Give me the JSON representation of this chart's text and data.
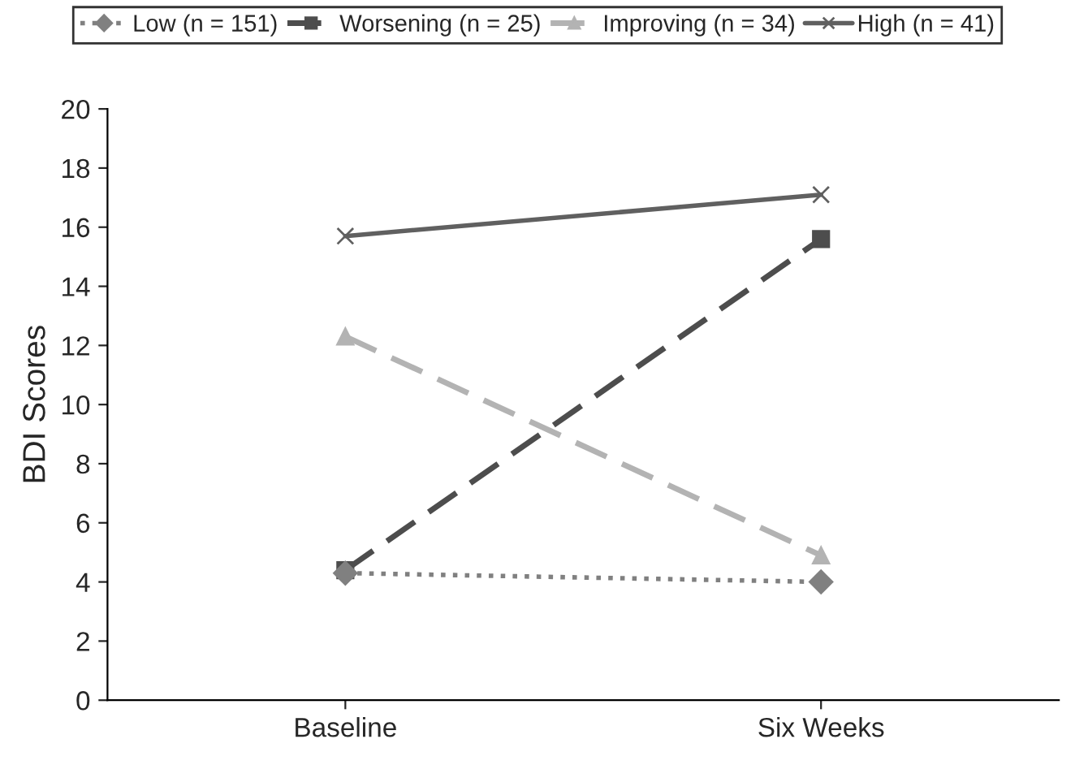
{
  "chart_data": {
    "type": "line",
    "ylabel": "BDI Scores",
    "categories": [
      "Baseline",
      "Six Weeks"
    ],
    "series": [
      {
        "name": "Low (n = 151)",
        "color": "#808080",
        "values": [
          4.3,
          4.0
        ],
        "marker": "diamond",
        "line_style": "dotted"
      },
      {
        "name": "Worsening (n = 25)",
        "color": "#4d4d4d",
        "values": [
          4.4,
          15.6
        ],
        "marker": "square",
        "line_style": "dashed"
      },
      {
        "name": "Improving (n = 34)",
        "color": "#b3b3b3",
        "values": [
          12.3,
          4.9
        ],
        "marker": "triangle",
        "line_style": "dashed"
      },
      {
        "name": "High (n = 41)",
        "color": "#606060",
        "values": [
          15.7,
          17.1
        ],
        "marker": "cross",
        "line_style": "solid"
      }
    ],
    "ylim": [
      0,
      20
    ],
    "yticks": [
      0,
      2,
      4,
      6,
      8,
      10,
      12,
      14,
      16,
      18,
      20
    ],
    "grid": false,
    "legend": "top"
  }
}
